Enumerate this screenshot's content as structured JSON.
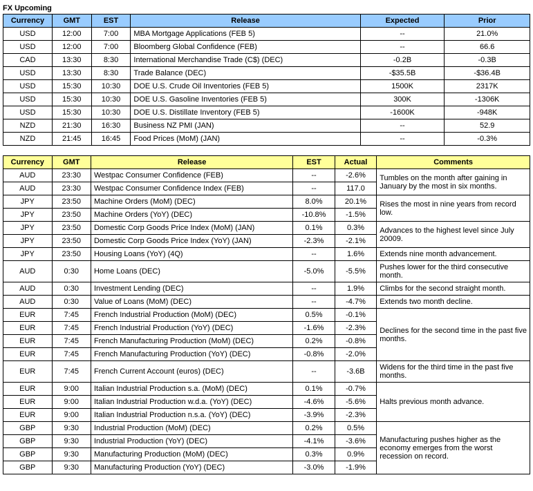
{
  "table1": {
    "title": "FX Upcoming",
    "header_bg": "#99ccff",
    "headers": [
      "Currency",
      "GMT",
      "EST",
      "Release",
      "Expected",
      "Prior"
    ],
    "col_widths": [
      "70px",
      "56px",
      "56px",
      "328px",
      "120px",
      "122px"
    ],
    "rows": [
      {
        "currency": "USD",
        "gmt": "12:00",
        "est": "7:00",
        "release": "MBA Mortgage Applications (FEB 5)",
        "expected": "--",
        "prior": "21.0%"
      },
      {
        "currency": "USD",
        "gmt": "12:00",
        "est": "7:00",
        "release": "Bloomberg Global Confidence (FEB)",
        "expected": "--",
        "prior": "66.6"
      },
      {
        "currency": "CAD",
        "gmt": "13:30",
        "est": "8:30",
        "release": "International Merchandise Trade (C$) (DEC)",
        "expected": "-0.2B",
        "prior": "-0.3B"
      },
      {
        "currency": "USD",
        "gmt": "13:30",
        "est": "8:30",
        "release": "Trade Balance (DEC)",
        "expected": "-$35.5B",
        "prior": "-$36.4B"
      },
      {
        "currency": "USD",
        "gmt": "15:30",
        "est": "10:30",
        "release": "DOE U.S. Crude Oil Inventories (FEB 5)",
        "expected": "1500K",
        "prior": "2317K"
      },
      {
        "currency": "USD",
        "gmt": "15:30",
        "est": "10:30",
        "release": "DOE U.S. Gasoline Inventories (FEB 5)",
        "expected": "300K",
        "prior": "-1306K"
      },
      {
        "currency": "USD",
        "gmt": "15:30",
        "est": "10:30",
        "release": "DOE U.S. Distillate Inventory (FEB 5)",
        "expected": "-1600K",
        "prior": "-948K"
      },
      {
        "currency": "NZD",
        "gmt": "21:30",
        "est": "16:30",
        "release": "Business NZ PMI (JAN)",
        "expected": "--",
        "prior": "52.9"
      },
      {
        "currency": "NZD",
        "gmt": "21:45",
        "est": "16:45",
        "release": "Food Prices (MoM) (JAN)",
        "expected": "--",
        "prior": "-0.3%"
      }
    ]
  },
  "table2": {
    "header_bg": "#ffff99",
    "headers": [
      "Currency",
      "GMT",
      "Release",
      "EST",
      "Actual",
      "Comments"
    ],
    "col_widths": [
      "70px",
      "56px",
      "290px",
      "60px",
      "60px",
      "220px"
    ],
    "rows": [
      {
        "currency": "AUD",
        "gmt": "23:30",
        "release": "Westpac Consumer Confidence (FEB)",
        "est": "--",
        "actual": "-2.6%",
        "comment": "Tumbles on the month after gaining in January by the most in six months.",
        "cgroup": "g1",
        "cfirst": true,
        "cspan": 2
      },
      {
        "currency": "AUD",
        "gmt": "23:30",
        "release": "Westpac Consumer Confidence Index (FEB)",
        "est": "--",
        "actual": "117.0",
        "comment": "",
        "cgroup": "g1"
      },
      {
        "currency": "JPY",
        "gmt": "23:50",
        "release": "Machine Orders (MoM) (DEC)",
        "est": "8.0%",
        "actual": "20.1%",
        "comment": "Rises the most in nine years from record low.",
        "cgroup": "g2",
        "cfirst": true,
        "cspan": 2
      },
      {
        "currency": "JPY",
        "gmt": "23:50",
        "release": "Machine Orders (YoY) (DEC)",
        "est": "-10.8%",
        "actual": "-1.5%",
        "comment": "",
        "cgroup": "g2"
      },
      {
        "currency": "JPY",
        "gmt": "23:50",
        "release": "Domestic Corp Goods Price Index (MoM) (JAN)",
        "est": "0.1%",
        "actual": "0.3%",
        "comment": "Advances to the highest level since July 20009.",
        "cgroup": "g3",
        "cfirst": true,
        "cspan": 2
      },
      {
        "currency": "JPY",
        "gmt": "23:50",
        "release": "Domestic Corp Goods Price Index (YoY) (JAN)",
        "est": "-2.3%",
        "actual": "-2.1%",
        "comment": "",
        "cgroup": "g3"
      },
      {
        "currency": "JPY",
        "gmt": "23:50",
        "release": "Housing Loans (YoY) (4Q)",
        "est": "--",
        "actual": "1.6%",
        "comment": "Extends nine month advancement.",
        "cgroup": "g4",
        "cfirst": true,
        "cspan": 1
      },
      {
        "currency": "AUD",
        "gmt": "0:30",
        "release": "Home Loans (DEC)",
        "est": "-5.0%",
        "actual": "-5.5%",
        "comment": "Pushes lower for the third consecutive month.",
        "cgroup": "g5",
        "cfirst": true,
        "cspan": 1
      },
      {
        "currency": "AUD",
        "gmt": "0:30",
        "release": "Investment Lending (DEC)",
        "est": "--",
        "actual": "1.9%",
        "comment": "Climbs for the second straight month.",
        "cgroup": "g6",
        "cfirst": true,
        "cspan": 1
      },
      {
        "currency": "AUD",
        "gmt": "0:30",
        "release": "Value of Loans (MoM) (DEC)",
        "est": "--",
        "actual": "-4.7%",
        "comment": "Extends two month decline.",
        "cgroup": "g7",
        "cfirst": true,
        "cspan": 1
      },
      {
        "currency": "EUR",
        "gmt": "7:45",
        "release": "French Industrial Production (MoM) (DEC)",
        "est": "0.5%",
        "actual": "-0.1%",
        "comment": "Declines for the second time in the past five months.",
        "cgroup": "g8",
        "cfirst": true,
        "cspan": 4
      },
      {
        "currency": "EUR",
        "gmt": "7:45",
        "release": "French Industrial Production (YoY) (DEC)",
        "est": "-1.6%",
        "actual": "-2.3%",
        "comment": "",
        "cgroup": "g8"
      },
      {
        "currency": "EUR",
        "gmt": "7:45",
        "release": "French Manufacturing Production (MoM) (DEC)",
        "est": "0.2%",
        "actual": "-0.8%",
        "comment": "",
        "cgroup": "g8"
      },
      {
        "currency": "EUR",
        "gmt": "7:45",
        "release": "French Manufacturing Production (YoY) (DEC)",
        "est": "-0.8%",
        "actual": "-2.0%",
        "comment": "",
        "cgroup": "g8"
      },
      {
        "currency": "EUR",
        "gmt": "7:45",
        "release": "French Current Account (euros) (DEC)",
        "est": "--",
        "actual": "-3.6B",
        "comment": "Widens for the third time in the past five months.",
        "cgroup": "g9",
        "cfirst": true,
        "cspan": 1
      },
      {
        "currency": "EUR",
        "gmt": "9:00",
        "release": "Italian Industrial Production s.a. (MoM) (DEC)",
        "est": "0.1%",
        "actual": "-0.7%",
        "comment": "Halts previous month advance.",
        "cgroup": "g10",
        "cfirst": true,
        "cspan": 3
      },
      {
        "currency": "EUR",
        "gmt": "9:00",
        "release": "Italian Industrial Production w.d.a. (YoY) (DEC)",
        "est": "-4.6%",
        "actual": "-5.6%",
        "comment": "",
        "cgroup": "g10"
      },
      {
        "currency": "EUR",
        "gmt": "9:00",
        "release": "Italian Industrial Production n.s.a. (YoY) (DEC)",
        "est": "-3.9%",
        "actual": "-2.3%",
        "comment": "",
        "cgroup": "g10"
      },
      {
        "currency": "GBP",
        "gmt": "9:30",
        "release": "Industrial Production (MoM) (DEC)",
        "est": "0.2%",
        "actual": "0.5%",
        "comment": "Manufacturing pushes higher as the economy emerges from the worst recession on record.",
        "cgroup": "g11",
        "cfirst": true,
        "cspan": 4
      },
      {
        "currency": "GBP",
        "gmt": "9:30",
        "release": "Industrial Production (YoY) (DEC)",
        "est": "-4.1%",
        "actual": "-3.6%",
        "comment": "",
        "cgroup": "g11"
      },
      {
        "currency": "GBP",
        "gmt": "9:30",
        "release": "Manufacturing Production (MoM) (DEC)",
        "est": "0.3%",
        "actual": "0.9%",
        "comment": "",
        "cgroup": "g11"
      },
      {
        "currency": "GBP",
        "gmt": "9:30",
        "release": "Manufacturing Production (YoY) (DEC)",
        "est": "-3.0%",
        "actual": "-1.9%",
        "comment": "",
        "cgroup": "g11"
      }
    ]
  }
}
